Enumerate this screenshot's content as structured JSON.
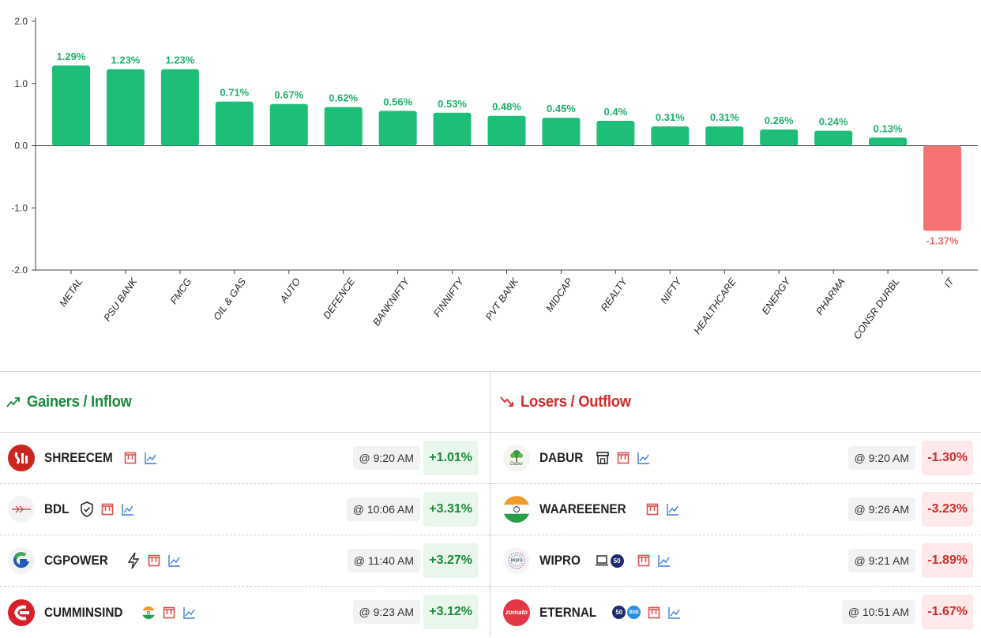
{
  "chart_data": {
    "type": "bar",
    "categories": [
      "METAL",
      "PSU BANK",
      "FMCG",
      "OIL & GAS",
      "AUTO",
      "DEFENCE",
      "BANKNIFTY",
      "FINNIFTY",
      "PVT BANK",
      "MIDCAP",
      "REALTY",
      "NIFTY",
      "HEALTHCARE",
      "ENERGY",
      "PHARMA",
      "CONSR DURBL",
      "IT"
    ],
    "values": [
      1.29,
      1.23,
      1.23,
      0.71,
      0.67,
      0.62,
      0.56,
      0.53,
      0.48,
      0.45,
      0.4,
      0.31,
      0.31,
      0.26,
      0.24,
      0.13,
      -1.37
    ],
    "value_labels": [
      "1.29%",
      "1.23%",
      "1.23%",
      "0.71%",
      "0.67%",
      "0.62%",
      "0.56%",
      "0.53%",
      "0.48%",
      "0.45%",
      "0.4%",
      "0.31%",
      "0.31%",
      "0.26%",
      "0.24%",
      "0.13%",
      "-1.37%"
    ],
    "ylim": [
      -2.0,
      2.0
    ],
    "yticks": [
      2.0,
      1.0,
      0.0,
      -1.0,
      -2.0
    ],
    "ytick_labels": [
      "2.0",
      "1.0",
      "0.0",
      "-1.0",
      "-2.0"
    ],
    "positive_color": "#1dbf78",
    "negative_color": "#f47272",
    "title": "",
    "xlabel": "",
    "ylabel": ""
  },
  "gainers": {
    "title": "Gainers / Inflow",
    "rows": [
      {
        "symbol": "SHREECEM",
        "time": "@ 9:20 AM",
        "change": "+1.01%",
        "logo": "shreecem-logo"
      },
      {
        "symbol": "BDL",
        "time": "@ 10:06 AM",
        "change": "+3.31%",
        "logo": "bdl-logo"
      },
      {
        "symbol": "CGPOWER",
        "time": "@ 11:40 AM",
        "change": "+3.27%",
        "logo": "cgpower-logo"
      },
      {
        "symbol": "CUMMINSIND",
        "time": "@ 9:23 AM",
        "change": "+3.12%",
        "logo": "cumminsind-logo"
      }
    ]
  },
  "losers": {
    "title": "Losers / Outflow",
    "rows": [
      {
        "symbol": "DABUR",
        "time": "@ 9:20 AM",
        "change": "-1.30%",
        "logo": "dabur-logo",
        "logo_text": "Dabur"
      },
      {
        "symbol": "WAAREEENER",
        "time": "@ 9:26 AM",
        "change": "-3.23%",
        "logo": "waareeener-logo"
      },
      {
        "symbol": "WIPRO",
        "time": "@ 9:21 AM",
        "change": "-1.89%",
        "logo": "wipro-logo",
        "logo_text": "wipro"
      },
      {
        "symbol": "ETERNAL",
        "time": "@ 10:51 AM",
        "change": "-1.67%",
        "logo": "zomato-logo",
        "logo_text": "zomato"
      }
    ]
  },
  "badges": {
    "nifty50": "50",
    "bse": "BSE"
  },
  "colors": {
    "gain": "#1b8a3c",
    "loss": "#d42b2b",
    "icon_red": "#e05050",
    "icon_blue": "#3b7be0"
  }
}
